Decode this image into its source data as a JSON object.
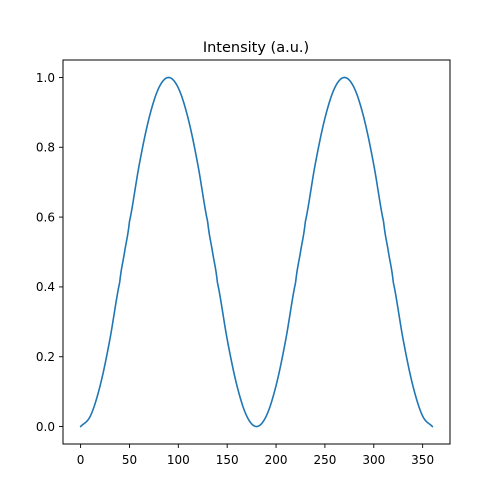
{
  "chart_data": {
    "type": "line",
    "title": "Intensity (a.u.)",
    "xlabel": "",
    "ylabel": "",
    "xlim": [
      -18,
      378
    ],
    "ylim": [
      -0.05,
      1.05
    ],
    "x_ticks": [
      0,
      50,
      100,
      150,
      200,
      250,
      300,
      350
    ],
    "x_tick_labels": [
      "0",
      "50",
      "100",
      "150",
      "200",
      "250",
      "300",
      "350"
    ],
    "y_ticks": [
      0.0,
      0.2,
      0.4,
      0.6,
      0.8,
      1.0
    ],
    "y_tick_labels": [
      "0.0",
      "0.2",
      "0.4",
      "0.6",
      "0.8",
      "1.0"
    ],
    "grid": false,
    "legend": "none",
    "series": [
      {
        "color": "#1f77b4",
        "x": [
          0,
          10,
          20,
          30,
          40,
          45,
          50,
          60,
          70,
          80,
          90,
          100,
          110,
          120,
          130,
          135,
          140,
          150,
          160,
          170,
          180,
          190,
          200,
          210,
          220,
          225,
          230,
          240,
          250,
          260,
          270,
          280,
          290,
          300,
          310,
          315,
          320,
          330,
          340,
          350,
          360
        ],
        "y": [
          0.0,
          0.03,
          0.117,
          0.25,
          0.413,
          0.5,
          0.587,
          0.75,
          0.883,
          0.97,
          1.0,
          0.97,
          0.883,
          0.75,
          0.587,
          0.5,
          0.413,
          0.25,
          0.117,
          0.03,
          0.0,
          0.03,
          0.117,
          0.25,
          0.413,
          0.5,
          0.587,
          0.75,
          0.883,
          0.97,
          1.0,
          0.97,
          0.883,
          0.75,
          0.587,
          0.5,
          0.413,
          0.25,
          0.117,
          0.03,
          0.0
        ]
      }
    ]
  }
}
